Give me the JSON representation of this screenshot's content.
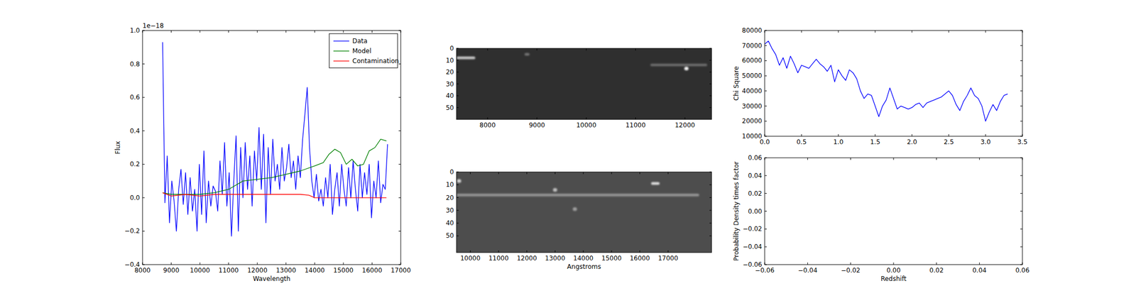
{
  "chart_data": [
    {
      "type": "line",
      "xlabel": "Wavelength",
      "ylabel": "Flux",
      "annotations": [
        "1e−18"
      ],
      "xlim": [
        8000,
        17000
      ],
      "xticks": [
        8000,
        9000,
        10000,
        11000,
        12000,
        13000,
        14000,
        15000,
        16000,
        17000
      ],
      "ylim": [
        -0.4,
        1.0
      ],
      "yticks": [
        {
          "value": -0.4,
          "label": "−0.4"
        },
        {
          "value": -0.2,
          "label": "−0.2"
        },
        {
          "value": 0,
          "label": "0.0"
        },
        0.2,
        0.4,
        0.6,
        0.8,
        {
          "value": 1.0,
          "label": "1.0"
        }
      ],
      "legend": "upper right",
      "series": [
        {
          "name": "Data",
          "color": "#0000ff",
          "x": [
            8700,
            8780,
            8860,
            8940,
            9020,
            9100,
            9180,
            9260,
            9340,
            9420,
            9500,
            9580,
            9660,
            9740,
            9820,
            9900,
            9980,
            10060,
            10140,
            10220,
            10300,
            10380,
            10460,
            10540,
            10620,
            10700,
            10780,
            10860,
            10940,
            11020,
            11100,
            11180,
            11260,
            11340,
            11420,
            11500,
            11580,
            11660,
            11740,
            11820,
            11900,
            11980,
            12060,
            12140,
            12220,
            12300,
            12380,
            12460,
            12540,
            12620,
            12700,
            12780,
            12860,
            12940,
            13020,
            13100,
            13180,
            13260,
            13340,
            13420,
            13500,
            13580,
            13660,
            13740,
            13820,
            13900,
            13980,
            14060,
            14140,
            14220,
            14300,
            14380,
            14460,
            14540,
            14620,
            14700,
            14780,
            14860,
            14940,
            15020,
            15100,
            15180,
            15260,
            15340,
            15420,
            15500,
            15580,
            15660,
            15740,
            15820,
            15900,
            15980,
            16060,
            16140,
            16220,
            16300,
            16380,
            16460,
            16540
          ],
          "values": [
            0.93,
            -0.03,
            0.25,
            -0.15,
            0.1,
            -0.02,
            -0.2,
            0.05,
            0.17,
            -0.04,
            0.15,
            -0.1,
            0.12,
            -0.08,
            0.05,
            -0.2,
            0.2,
            -0.1,
            0.28,
            -0.15,
            0.1,
            -0.05,
            0.07,
            0.04,
            -0.08,
            0.22,
            0.02,
            0.33,
            -0.05,
            0.15,
            -0.23,
            0.1,
            0.37,
            -0.2,
            0.3,
            0.0,
            0.33,
            0.05,
            0.25,
            -0.05,
            0.28,
            0.1,
            0.42,
            0.05,
            0.38,
            -0.15,
            0.3,
            0.02,
            0.35,
            0.1,
            0.2,
            0.05,
            0.3,
            0.1,
            0.18,
            0.32,
            0.12,
            0.22,
            0.05,
            0.25,
            0.12,
            0.35,
            0.5,
            0.66,
            0.3,
            0.1,
            0.0,
            0.14,
            -0.02,
            0.05,
            -0.05,
            0.12,
            0.0,
            0.2,
            -0.1,
            0.05,
            0.15,
            -0.05,
            0.2,
            0.05,
            -0.05,
            0.18,
            0.0,
            0.22,
            0.05,
            -0.08,
            0.2,
            0.0,
            0.15,
            0.02,
            0.2,
            -0.12,
            0.1,
            0.0,
            0.22,
            -0.03,
            0.08,
            0.05,
            0.32
          ]
        },
        {
          "name": "Model",
          "color": "#008000",
          "x": [
            8700,
            9000,
            9500,
            10000,
            10500,
            11000,
            11500,
            12000,
            12500,
            13000,
            13500,
            14000,
            14300,
            14500,
            14700,
            14900,
            15100,
            15300,
            15500,
            15700,
            15900,
            16100,
            16300,
            16500
          ],
          "values": [
            0.03,
            0.02,
            0.02,
            0.02,
            0.03,
            0.05,
            0.1,
            0.11,
            0.12,
            0.14,
            0.16,
            0.19,
            0.21,
            0.26,
            0.29,
            0.27,
            0.2,
            0.23,
            0.19,
            0.2,
            0.28,
            0.3,
            0.35,
            0.34
          ]
        },
        {
          "name": "Contamination",
          "color": "#ff0000",
          "x": [
            8700,
            9000,
            9500,
            10000,
            10500,
            11000,
            12000,
            13000,
            13500,
            13800,
            14000,
            14500,
            15000,
            16500
          ],
          "values": [
            0.03,
            0.01,
            0.02,
            0.01,
            0.02,
            0.02,
            0.02,
            0.02,
            0.02,
            0.015,
            0.0,
            0.0,
            0.0,
            0.0
          ]
        }
      ]
    },
    {
      "type": "image",
      "xlim": [
        7370,
        12540
      ],
      "xticks": [
        8000,
        9000,
        10000,
        11000,
        12000
      ],
      "ylim": [
        60,
        0
      ],
      "yticks": [
        0,
        10,
        20,
        30,
        40,
        50
      ],
      "features": {
        "x": [
          7370,
          8750,
          11300,
          12030
        ],
        "x_end": [
          7750,
          8850,
          12450,
          12030
        ],
        "y": [
          8,
          5,
          14,
          17
        ],
        "values": [
          0.75,
          0.35,
          0.3,
          0.95
        ]
      }
    },
    {
      "type": "line",
      "ylabel": "Chi Square",
      "xlim": [
        0,
        3.5
      ],
      "xticks": [
        {
          "value": 0,
          "label": "0.0"
        },
        0.5,
        {
          "value": 1,
          "label": "1.0"
        },
        1.5,
        {
          "value": 2,
          "label": "2.0"
        },
        2.5,
        {
          "value": 3,
          "label": "3.0"
        },
        3.5
      ],
      "ylim": [
        10000,
        80000
      ],
      "yticks": [
        10000,
        20000,
        30000,
        40000,
        50000,
        60000,
        70000,
        80000
      ],
      "x": [
        0,
        0.05,
        0.1,
        0.15,
        0.2,
        0.25,
        0.3,
        0.35,
        0.4,
        0.45,
        0.5,
        0.55,
        0.6,
        0.65,
        0.7,
        0.75,
        0.8,
        0.85,
        0.9,
        0.95,
        1.0,
        1.05,
        1.1,
        1.15,
        1.2,
        1.25,
        1.3,
        1.35,
        1.4,
        1.45,
        1.5,
        1.55,
        1.6,
        1.65,
        1.7,
        1.75,
        1.8,
        1.85,
        1.9,
        1.95,
        2.0,
        2.05,
        2.1,
        2.15,
        2.2,
        2.25,
        2.3,
        2.35,
        2.4,
        2.45,
        2.5,
        2.55,
        2.6,
        2.65,
        2.7,
        2.75,
        2.8,
        2.85,
        2.9,
        2.95,
        3.0,
        3.05,
        3.1,
        3.15,
        3.2,
        3.25,
        3.3
      ],
      "series": [
        {
          "color": "#0000ff",
          "values": [
            71000,
            73000,
            68000,
            64000,
            57000,
            62000,
            55000,
            63000,
            58000,
            52000,
            57000,
            56000,
            55000,
            58000,
            61000,
            58000,
            56000,
            53000,
            57000,
            46000,
            54000,
            50000,
            47000,
            54000,
            52000,
            48000,
            40000,
            35000,
            38000,
            37000,
            30000,
            23000,
            30000,
            34000,
            42000,
            35000,
            28000,
            30000,
            29000,
            28000,
            29000,
            31000,
            32000,
            29000,
            32000,
            33000,
            34000,
            35000,
            36000,
            38000,
            40000,
            37000,
            31000,
            27000,
            33000,
            37000,
            42000,
            37000,
            35000,
            30000,
            20000,
            26000,
            31000,
            27000,
            33000,
            37000,
            38000
          ]
        }
      ]
    },
    {
      "type": "image",
      "xlabel": "Angstroms",
      "xlim": [
        9510,
        18540
      ],
      "xticks": [
        10000,
        11000,
        12000,
        13000,
        14000,
        15000,
        16000,
        17000
      ],
      "ylim": [
        63,
        0
      ],
      "yticks": [
        0,
        10,
        20,
        30,
        40,
        50
      ],
      "features": {
        "x": [
          9510,
          9600,
          13000,
          13700,
          16400
        ],
        "x_end": [
          18100,
          9600,
          13000,
          13700,
          16700
        ],
        "y": [
          18,
          7,
          14,
          29,
          9
        ],
        "values": [
          0.5,
          0.8,
          0.7,
          0.55,
          0.85
        ]
      }
    },
    {
      "type": "line",
      "xlabel": "Redshift",
      "ylabel": "Probability Density times factor",
      "xlim": [
        -0.06,
        0.06
      ],
      "xticks": [
        {
          "value": -0.06,
          "label": "−0.06"
        },
        {
          "value": -0.04,
          "label": "−0.04"
        },
        {
          "value": -0.02,
          "label": "−0.02"
        },
        {
          "value": 0,
          "label": "0.00"
        },
        0.02,
        0.04,
        0.06
      ],
      "ylim": [
        -0.06,
        0.06
      ],
      "yticks": [
        {
          "value": -0.06,
          "label": "−0.06"
        },
        {
          "value": -0.04,
          "label": "−0.04"
        },
        {
          "value": -0.02,
          "label": "−0.02"
        },
        {
          "value": 0,
          "label": "0.00"
        },
        0.02,
        0.04,
        0.06
      ],
      "series": []
    }
  ]
}
